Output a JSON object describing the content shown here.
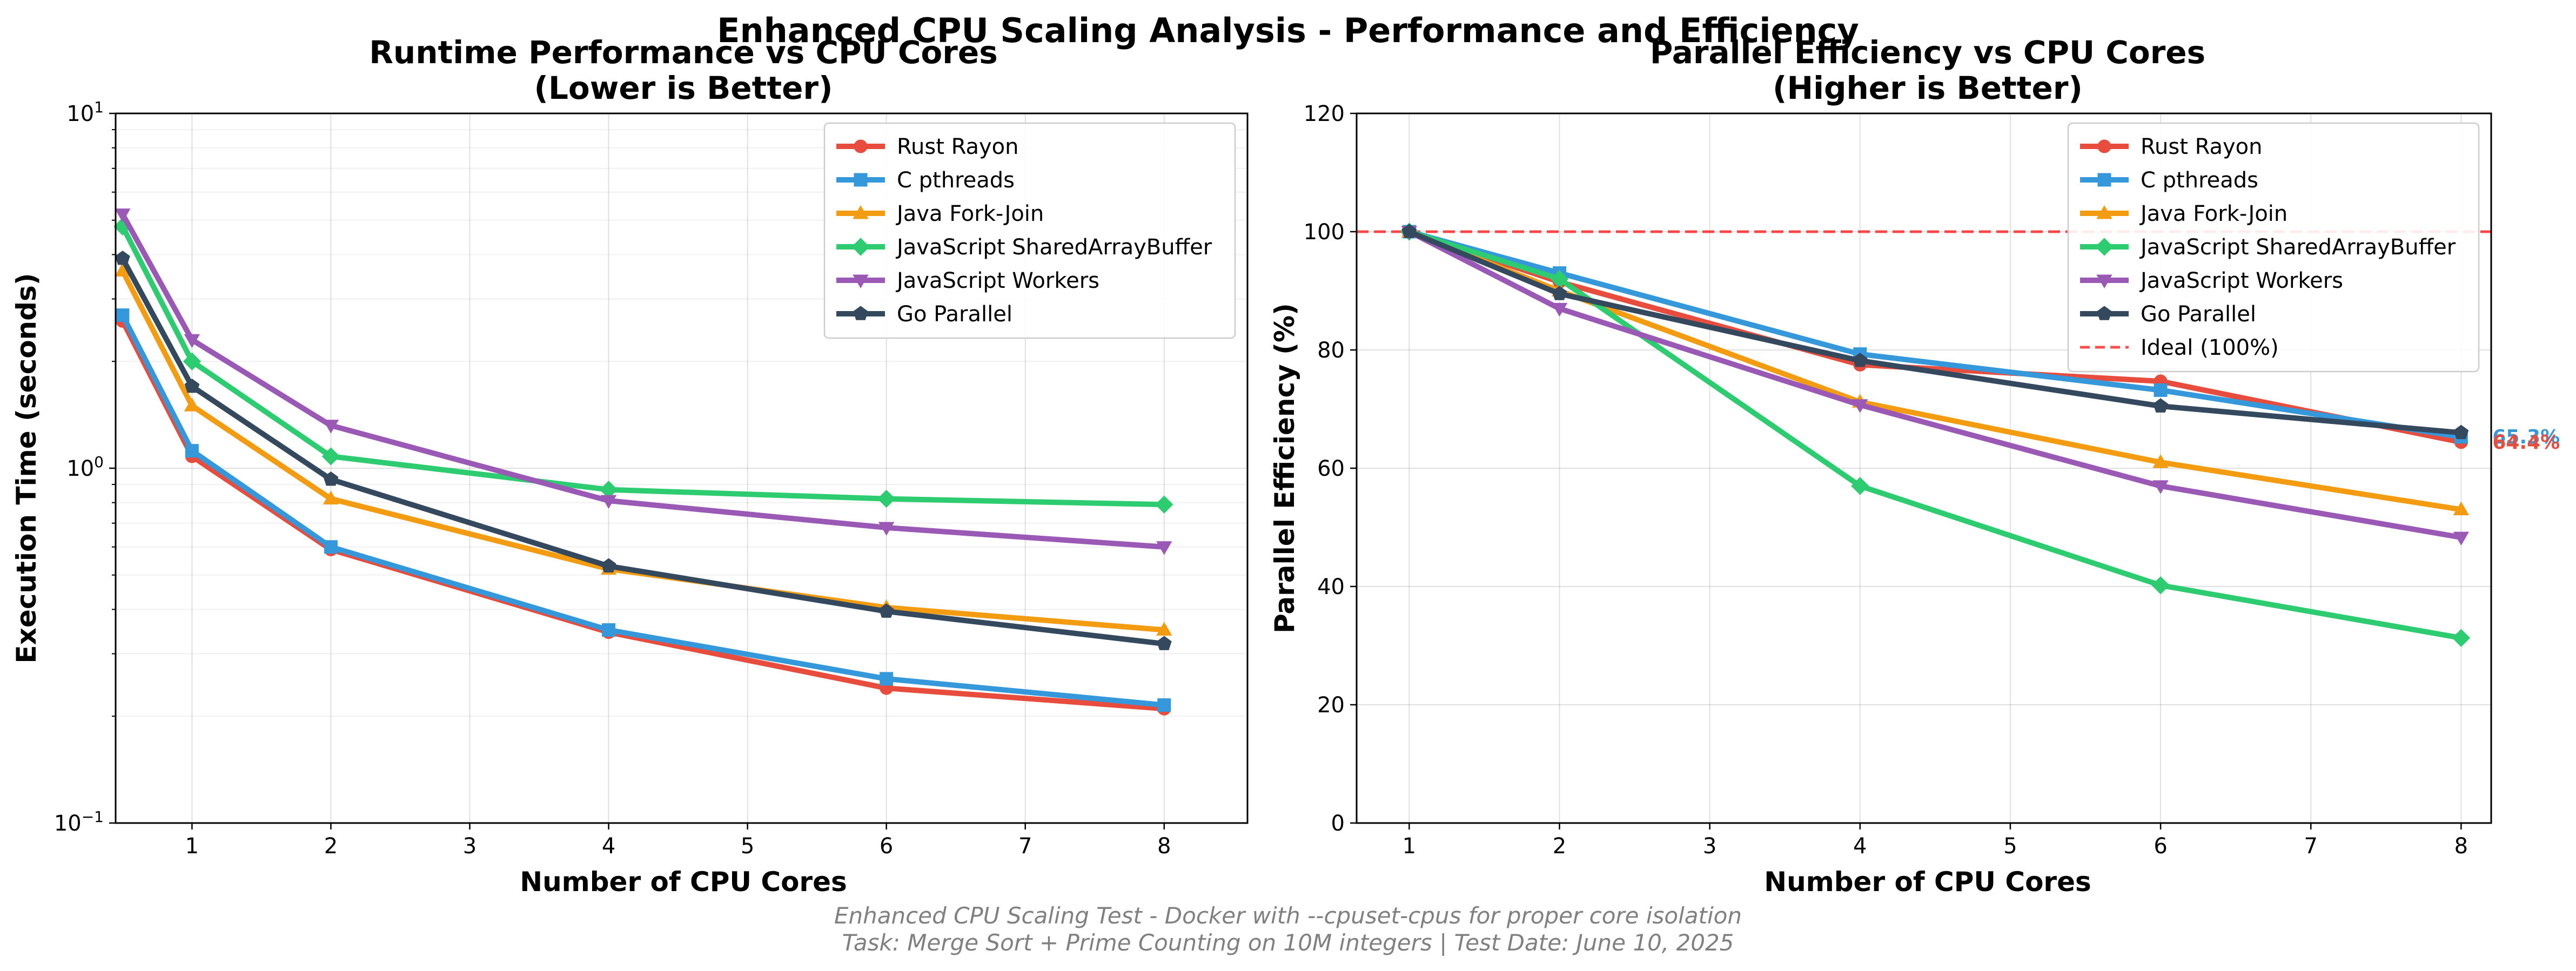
{
  "figure": {
    "suptitle": "Enhanced CPU Scaling Analysis - Performance and Efficiency",
    "footer_line1": "Enhanced CPU Scaling Test - Docker with --cpuset-cpus for proper core isolation",
    "footer_line2": "Task: Merge Sort + Prime Counting on 10M integers | Test Date: June 10, 2025"
  },
  "chart_data": [
    {
      "type": "line",
      "title_line1": "Runtime Performance vs CPU Cores",
      "title_line2": "(Lower is Better)",
      "xlabel": "Number of CPU Cores",
      "ylabel": "Execution Time (seconds)",
      "yscale": "log",
      "xlim": [
        0.45,
        8.6
      ],
      "ylim": [
        0.1,
        10
      ],
      "xticks": [
        1,
        2,
        3,
        4,
        5,
        6,
        7,
        8
      ],
      "yticks": [
        {
          "value": 0.1,
          "base": "10",
          "exp": "−1"
        },
        {
          "value": 1,
          "base": "10",
          "exp": "0"
        },
        {
          "value": 10,
          "base": "10",
          "exp": "1"
        }
      ],
      "grid": true,
      "legend_position": "upper right",
      "x": [
        0.5,
        1,
        2,
        4,
        6,
        8
      ],
      "series": [
        {
          "name": "Rust Rayon",
          "color": "#e74c3c",
          "marker": "circle",
          "values": [
            2.6,
            1.08,
            0.59,
            0.345,
            0.24,
            0.21
          ]
        },
        {
          "name": "C pthreads",
          "color": "#3498db",
          "marker": "square",
          "values": [
            2.7,
            1.12,
            0.6,
            0.35,
            0.255,
            0.215
          ]
        },
        {
          "name": "Java Fork-Join",
          "color": "#f39c12",
          "marker": "triangle-up",
          "values": [
            3.6,
            1.5,
            0.82,
            0.52,
            0.405,
            0.35
          ]
        },
        {
          "name": "JavaScript SharedArrayBuffer",
          "color": "#2ecc71",
          "marker": "diamond",
          "values": [
            4.8,
            2.0,
            1.08,
            0.87,
            0.82,
            0.79
          ]
        },
        {
          "name": "JavaScript Workers",
          "color": "#9b59b6",
          "marker": "triangle-down",
          "values": [
            5.2,
            2.3,
            1.32,
            0.81,
            0.68,
            0.6
          ]
        },
        {
          "name": "Go Parallel",
          "color": "#34495e",
          "marker": "pentagon",
          "values": [
            3.9,
            1.7,
            0.93,
            0.53,
            0.395,
            0.32
          ]
        }
      ]
    },
    {
      "type": "line",
      "title_line1": "Parallel Efficiency vs CPU Cores",
      "title_line2": "(Higher is Better)",
      "xlabel": "Number of CPU Cores",
      "ylabel": "Parallel Efficiency (%)",
      "xlim": [
        0.65,
        8.2
      ],
      "ylim": [
        0,
        120
      ],
      "xticks": [
        1,
        2,
        3,
        4,
        5,
        6,
        7,
        8
      ],
      "yticks": [
        0,
        20,
        40,
        60,
        80,
        100,
        120
      ],
      "grid": true,
      "legend_position": "upper right",
      "x": [
        1,
        2,
        4,
        6,
        8
      ],
      "series": [
        {
          "name": "Rust Rayon",
          "color": "#e74c3c",
          "marker": "circle",
          "values": [
            100,
            91.5,
            77.5,
            74.7,
            64.4
          ]
        },
        {
          "name": "C pthreads",
          "color": "#3498db",
          "marker": "square",
          "values": [
            100,
            93.0,
            79.3,
            73.2,
            65.3
          ]
        },
        {
          "name": "Java Fork-Join",
          "color": "#f39c12",
          "marker": "triangle-up",
          "values": [
            100,
            90.0,
            71.2,
            61.0,
            53.0
          ]
        },
        {
          "name": "JavaScript SharedArrayBuffer",
          "color": "#2ecc71",
          "marker": "diamond",
          "values": [
            100,
            92.0,
            57.0,
            40.2,
            31.3
          ]
        },
        {
          "name": "JavaScript Workers",
          "color": "#9b59b6",
          "marker": "triangle-down",
          "values": [
            100,
            87.0,
            70.7,
            57.0,
            48.3
          ]
        },
        {
          "name": "Go Parallel",
          "color": "#34495e",
          "marker": "pentagon",
          "values": [
            100,
            89.5,
            78.2,
            70.5,
            66.0
          ]
        }
      ],
      "reference_line": {
        "name": "Ideal (100%)",
        "value": 100,
        "color": "#ff0000"
      },
      "end_labels": [
        {
          "text": "65.3%",
          "series": "C pthreads",
          "color": "#3498db"
        },
        {
          "text": "64.4%",
          "series": "Rust Rayon",
          "color": "#e74c3c"
        }
      ]
    }
  ]
}
